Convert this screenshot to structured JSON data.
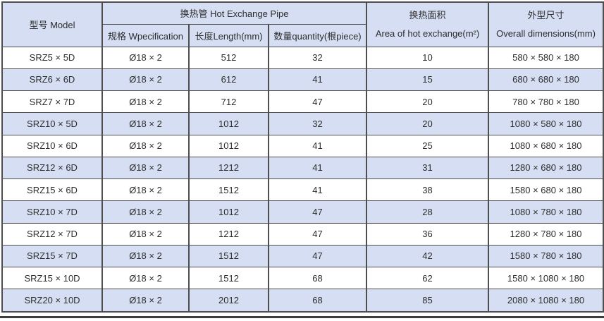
{
  "table": {
    "header": {
      "model": "型号 Model",
      "pipe_group": "换热管  Hot Exchange Pipe",
      "spec": "规格 Wpecification",
      "length": "长度Length(mm)",
      "quantity": "数量quantity(根piece)",
      "area_cn": "换热面积",
      "area_en": "Area of hot exchange(m²)",
      "dims_cn": "外型尺寸",
      "dims_en": "Overall dimensions(mm)"
    },
    "rows": [
      {
        "model": "SRZ5 × 5D",
        "spec": "Ø18 × 2",
        "length": "512",
        "qty": "32",
        "area": "10",
        "dims": "580 × 580 × 180"
      },
      {
        "model": "SRZ6 × 6D",
        "spec": "Ø18 × 2",
        "length": "612",
        "qty": "41",
        "area": "15",
        "dims": "680 × 680 × 180"
      },
      {
        "model": "SRZ7 × 7D",
        "spec": "Ø18 × 2",
        "length": "712",
        "qty": "47",
        "area": "20",
        "dims": "780 × 780 × 180"
      },
      {
        "model": "SRZ10 × 5D",
        "spec": "Ø18 × 2",
        "length": "1012",
        "qty": "32",
        "area": "20",
        "dims": "1080 × 580 × 180"
      },
      {
        "model": "SRZ10 × 6D",
        "spec": "Ø18 × 2",
        "length": "1012",
        "qty": "41",
        "area": "25",
        "dims": "1080 × 680 × 180"
      },
      {
        "model": "SRZ12 × 6D",
        "spec": "Ø18 × 2",
        "length": "1212",
        "qty": "41",
        "area": "31",
        "dims": "1280 × 680 × 180"
      },
      {
        "model": "SRZ15 × 6D",
        "spec": "Ø18 × 2",
        "length": "1512",
        "qty": "41",
        "area": "38",
        "dims": "1580 × 680 × 180"
      },
      {
        "model": "SRZ10 × 7D",
        "spec": "Ø18 × 2",
        "length": "1012",
        "qty": "47",
        "area": "28",
        "dims": "1080 × 780 × 180"
      },
      {
        "model": "SRZ12 × 7D",
        "spec": "Ø18 × 2",
        "length": "1212",
        "qty": "47",
        "area": "36",
        "dims": "1280 × 780 × 180"
      },
      {
        "model": "SRZ15 × 7D",
        "spec": "Ø18 × 2",
        "length": "1512",
        "qty": "47",
        "area": "42",
        "dims": "1580 × 780 × 180"
      },
      {
        "model": "SRZ15 × 10D",
        "spec": "Ø18 × 2",
        "length": "1512",
        "qty": "68",
        "area": "62",
        "dims": "1580 × 1080 × 180"
      },
      {
        "model": "SRZ20 × 10D",
        "spec": "Ø18 × 2",
        "length": "2012",
        "qty": "68",
        "area": "85",
        "dims": "2080 × 1080 × 180"
      }
    ]
  },
  "colors": {
    "row_alt_background": "#d5def2",
    "grid_border": "#4e4e4e",
    "bottom_rule": "#3d3d3d",
    "text": "#2d2d2d"
  }
}
